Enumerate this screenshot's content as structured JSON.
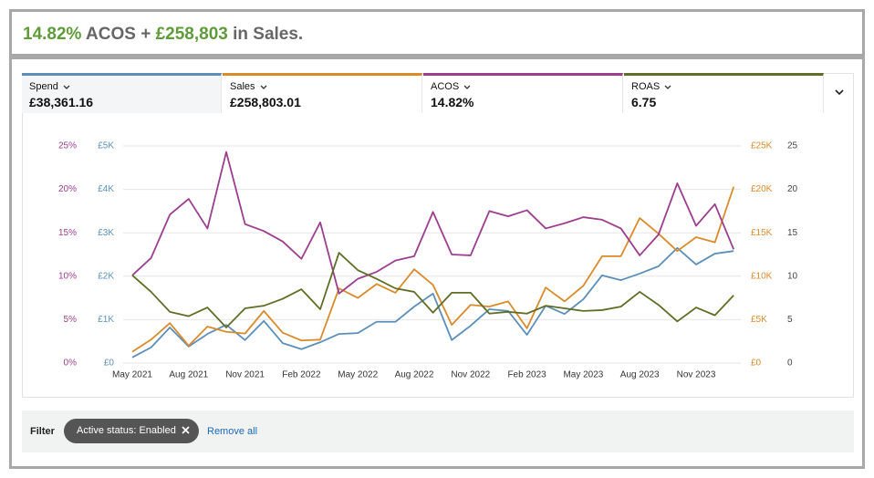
{
  "header": {
    "parts": [
      "14.82%",
      " ACOS + ",
      "£258,803",
      " in Sales."
    ]
  },
  "chart_data": {
    "type": "line",
    "categories": [
      "May 2021",
      null,
      null,
      "Aug 2021",
      null,
      null,
      "Nov 2021",
      null,
      null,
      "Feb 2022",
      null,
      null,
      "May 2022",
      null,
      null,
      "Aug 2022",
      null,
      null,
      "Nov 2022",
      null,
      null,
      "Feb 2023",
      null,
      null,
      "May 2023",
      null,
      null,
      "Aug 2023",
      null,
      null,
      "Nov 2023",
      null,
      null
    ],
    "ylim": [
      0,
      25
    ],
    "yticks": [
      {
        "value": 0,
        "label": "0%"
      },
      {
        "value": 5,
        "label": "5%"
      },
      {
        "value": 10,
        "label": "10%"
      },
      {
        "value": 15,
        "label": "15%"
      },
      {
        "value": 20,
        "label": "20%"
      },
      {
        "value": 25,
        "label": "25%"
      }
    ],
    "y2lim": [
      0,
      5000
    ],
    "y2ticks": [
      {
        "value": 0,
        "label": "£0"
      },
      {
        "value": 1000,
        "label": "£1K"
      },
      {
        "value": 2000,
        "label": "£2K"
      },
      {
        "value": 3000,
        "label": "£3K"
      },
      {
        "value": 4000,
        "label": "£4K"
      },
      {
        "value": 5000,
        "label": "£5K"
      }
    ],
    "y3lim": [
      0,
      25000
    ],
    "y3ticks": [
      {
        "value": 0,
        "label": "£0"
      },
      {
        "value": 5000,
        "label": "£5K"
      },
      {
        "value": 10000,
        "label": "£10K"
      },
      {
        "value": 15000,
        "label": "£15K"
      },
      {
        "value": 20000,
        "label": "£20K"
      },
      {
        "value": 25000,
        "label": "£25K"
      }
    ],
    "y4lim": [
      0,
      25
    ],
    "y4ticks": [
      0,
      5,
      10,
      15,
      20,
      25
    ],
    "grid": true,
    "series": [
      {
        "name": "Spend",
        "total": "£38,361.16",
        "color": "#5b8fba",
        "axis": "y2",
        "values": [
          130,
          360,
          820,
          380,
          670,
          880,
          530,
          970,
          460,
          320,
          480,
          670,
          690,
          950,
          950,
          1300,
          1600,
          530,
          860,
          1240,
          1200,
          650,
          1320,
          1130,
          1470,
          2020,
          1910,
          2060,
          2230,
          2650,
          2270,
          2520,
          2580
        ]
      },
      {
        "name": "Sales",
        "total": "£258,803.01",
        "color": "#d98b2c",
        "axis": "y3",
        "values": [
          1300,
          2700,
          4600,
          2000,
          4200,
          3600,
          3400,
          6000,
          3500,
          2600,
          2700,
          8600,
          7500,
          9100,
          8100,
          10800,
          9000,
          4400,
          6700,
          6500,
          7100,
          4000,
          8700,
          7100,
          8900,
          12300,
          12300,
          16700,
          14900,
          12900,
          14500,
          13900,
          20300
        ]
      },
      {
        "name": "ACOS",
        "total": "14.82%",
        "color": "#9c3d8e",
        "axis": "y",
        "values": [
          10.1,
          12.1,
          17.1,
          18.9,
          15.5,
          24.3,
          16.0,
          15.2,
          14.0,
          12.0,
          16.2,
          8.0,
          9.7,
          10.5,
          11.8,
          12.3,
          17.4,
          12.5,
          12.4,
          17.5,
          16.9,
          17.6,
          15.5,
          16.1,
          16.8,
          16.5,
          15.5,
          12.4,
          14.8,
          20.7,
          15.8,
          18.3,
          13.1
        ]
      },
      {
        "name": "ROAS",
        "total": "6.75",
        "color": "#5f6e26",
        "axis": "y4",
        "values": [
          10.1,
          8.2,
          5.9,
          5.4,
          6.4,
          4.1,
          6.3,
          6.6,
          7.4,
          8.5,
          6.2,
          12.7,
          10.7,
          9.7,
          8.6,
          8.2,
          5.8,
          8.1,
          8.1,
          5.7,
          5.9,
          5.7,
          6.6,
          6.3,
          6.0,
          6.1,
          6.5,
          8.2,
          6.7,
          4.8,
          6.4,
          5.5,
          7.8
        ]
      }
    ]
  },
  "filter": {
    "label": "Filter",
    "chip": "Active status: Enabled",
    "remove": "Remove all"
  }
}
